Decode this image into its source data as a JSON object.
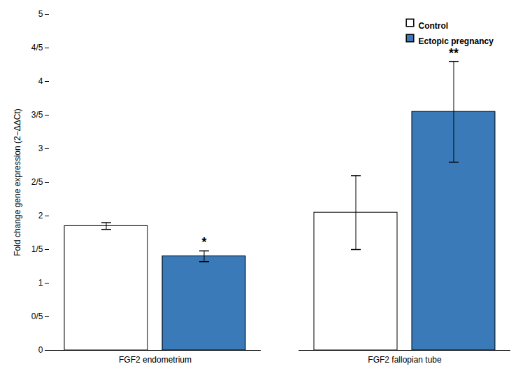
{
  "chart_data": {
    "type": "bar",
    "categories": [
      "FGF2 endometrium",
      "FGF2 fallopian tube"
    ],
    "series": [
      {
        "name": "Control",
        "color": "#ffffff",
        "values": [
          1.85,
          2.05
        ],
        "errors": [
          0.05,
          0.55
        ]
      },
      {
        "name": "Ectopic pregnancy",
        "color": "#3a7ab8",
        "values": [
          1.4,
          3.55
        ],
        "errors": [
          0.08,
          0.75
        ]
      }
    ],
    "ylabel": "Fold change gene expression (2−ΔΔCt)",
    "ylim": [
      0,
      5
    ],
    "yticks": [
      0,
      {
        "value": 0.5,
        "label": "0/5"
      },
      1,
      {
        "value": 1.5,
        "label": "1/5"
      },
      2,
      {
        "value": 2.5,
        "label": "2/5"
      },
      3,
      {
        "value": 3.5,
        "label": "3/5"
      },
      4,
      {
        "value": 4.5,
        "label": "4/5"
      },
      5
    ],
    "annotations": [
      {
        "text": "*",
        "x": "FGF2 endometrium",
        "series": "Ectopic pregnancy"
      },
      {
        "text": "**",
        "x": "FGF2 fallopian tube",
        "series": "Ectopic pregnancy"
      }
    ],
    "legend": "upper right",
    "grid": false
  }
}
